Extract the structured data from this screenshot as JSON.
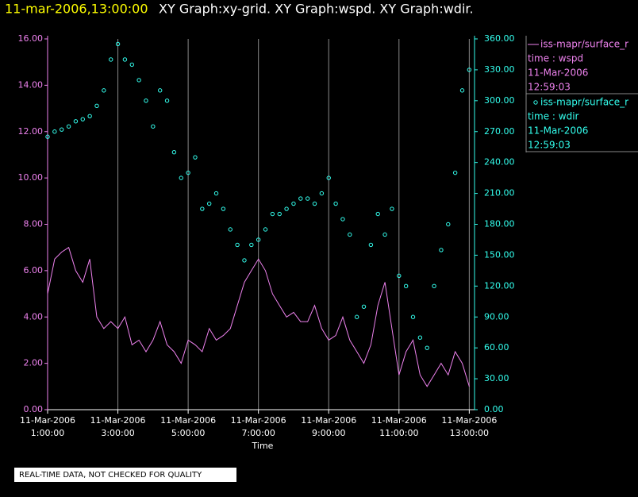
{
  "chart_data": {
    "type": "line",
    "title": "11-mar-2006,13:00:00",
    "subtitle": "XY Graph:xy-grid.  XY Graph:wspd.  XY Graph:wdir.",
    "x_label": "Time",
    "note": "REAL-TIME DATA, NOT CHECKED FOR QUALITY",
    "grid": true,
    "xlim": [
      1,
      13.15
    ],
    "xticks": [
      {
        "value": 1,
        "label": "11-Mar-2006 1:00:00"
      },
      {
        "value": 3,
        "label": "11-Mar-2006 3:00:00"
      },
      {
        "value": 5,
        "label": "11-Mar-2006 5:00:00"
      },
      {
        "value": 7,
        "label": "11-Mar-2006 7:00:00"
      },
      {
        "value": 9,
        "label": "11-Mar-2006 9:00:00"
      },
      {
        "value": 11,
        "label": "11-Mar-2006 11:00:00"
      },
      {
        "value": 13,
        "label": "11-Mar-2006 13:00:00"
      }
    ],
    "ylim": [
      0,
      16
    ],
    "yticks": [
      {
        "value": 0,
        "label": "0.00"
      },
      {
        "value": 2,
        "label": "2.00"
      },
      {
        "value": 4,
        "label": "4.00"
      },
      {
        "value": 6,
        "label": "6.00"
      },
      {
        "value": 8,
        "label": "8.00"
      },
      {
        "value": 10,
        "label": "10.00"
      },
      {
        "value": 12,
        "label": "12.00"
      },
      {
        "value": 14,
        "label": "14.00"
      },
      {
        "value": 16,
        "label": "16.00"
      }
    ],
    "y2lim": [
      0,
      360
    ],
    "y2ticks": [
      {
        "value": 0,
        "label": "0.00"
      },
      {
        "value": 30,
        "label": "30.00"
      },
      {
        "value": 60,
        "label": "60.00"
      },
      {
        "value": 90,
        "label": "90.00"
      },
      {
        "value": 120,
        "label": "120.00"
      },
      {
        "value": 150,
        "label": "150.00"
      },
      {
        "value": 180,
        "label": "180.00"
      },
      {
        "value": 210,
        "label": "210.00"
      },
      {
        "value": 240,
        "label": "240.00"
      },
      {
        "value": 270,
        "label": "270.00"
      },
      {
        "value": 300,
        "label": "300.00"
      },
      {
        "value": 330,
        "label": "330.00"
      },
      {
        "value": 360,
        "label": "360.00"
      }
    ],
    "x": [
      1.0,
      1.2,
      1.4,
      1.6,
      1.8,
      2.0,
      2.2,
      2.4,
      2.6,
      2.8,
      3.0,
      3.2,
      3.4,
      3.6,
      3.8,
      4.0,
      4.2,
      4.4,
      4.6,
      4.8,
      5.0,
      5.2,
      5.4,
      5.6,
      5.8,
      6.0,
      6.2,
      6.4,
      6.6,
      6.8,
      7.0,
      7.2,
      7.4,
      7.6,
      7.8,
      8.0,
      8.2,
      8.4,
      8.6,
      8.8,
      9.0,
      9.2,
      9.4,
      9.6,
      9.8,
      10.0,
      10.2,
      10.4,
      10.6,
      10.8,
      11.0,
      11.2,
      11.4,
      11.6,
      11.8,
      12.0,
      12.2,
      12.4,
      12.6,
      12.8,
      13.0
    ],
    "series": [
      {
        "name": "iss-mapr/surface_r",
        "legend_lines": [
          "time : wspd",
          "11-Mar-2006",
          "12:59:03"
        ],
        "color": "#ee82ee",
        "mark": "line",
        "values": [
          5.0,
          6.5,
          6.8,
          7.0,
          6.0,
          5.5,
          6.5,
          4.0,
          3.5,
          3.8,
          3.5,
          4.0,
          2.8,
          3.0,
          2.5,
          3.0,
          3.8,
          2.8,
          2.5,
          2.0,
          3.0,
          2.8,
          2.5,
          3.5,
          3.0,
          3.2,
          3.5,
          4.5,
          5.5,
          6.0,
          6.5,
          6.0,
          5.0,
          4.5,
          4.0,
          4.2,
          3.8,
          3.8,
          4.5,
          3.5,
          3.0,
          3.2,
          4.0,
          3.0,
          2.5,
          2.0,
          2.8,
          4.5,
          5.5,
          3.5,
          1.5,
          2.5,
          3.0,
          1.5,
          1.0,
          1.5,
          2.0,
          1.5,
          2.5,
          2.0,
          1.0
        ]
      },
      {
        "name": "iss-mapr/surface_r",
        "legend_lines": [
          "time : wdir",
          "11-Mar-2006",
          "12:59:03"
        ],
        "color": "#33ffee",
        "mark": "circle",
        "axis": "y2",
        "values": [
          265,
          270,
          272,
          275,
          280,
          282,
          285,
          295,
          310,
          340,
          355,
          340,
          335,
          320,
          300,
          275,
          310,
          300,
          250,
          225,
          230,
          245,
          195,
          200,
          210,
          195,
          175,
          160,
          145,
          160,
          165,
          175,
          190,
          190,
          195,
          200,
          205,
          205,
          200,
          210,
          225,
          200,
          185,
          170,
          90,
          100,
          160,
          190,
          170,
          195,
          130,
          120,
          90,
          70,
          60,
          120,
          155,
          180,
          230,
          310,
          330
        ]
      }
    ]
  }
}
